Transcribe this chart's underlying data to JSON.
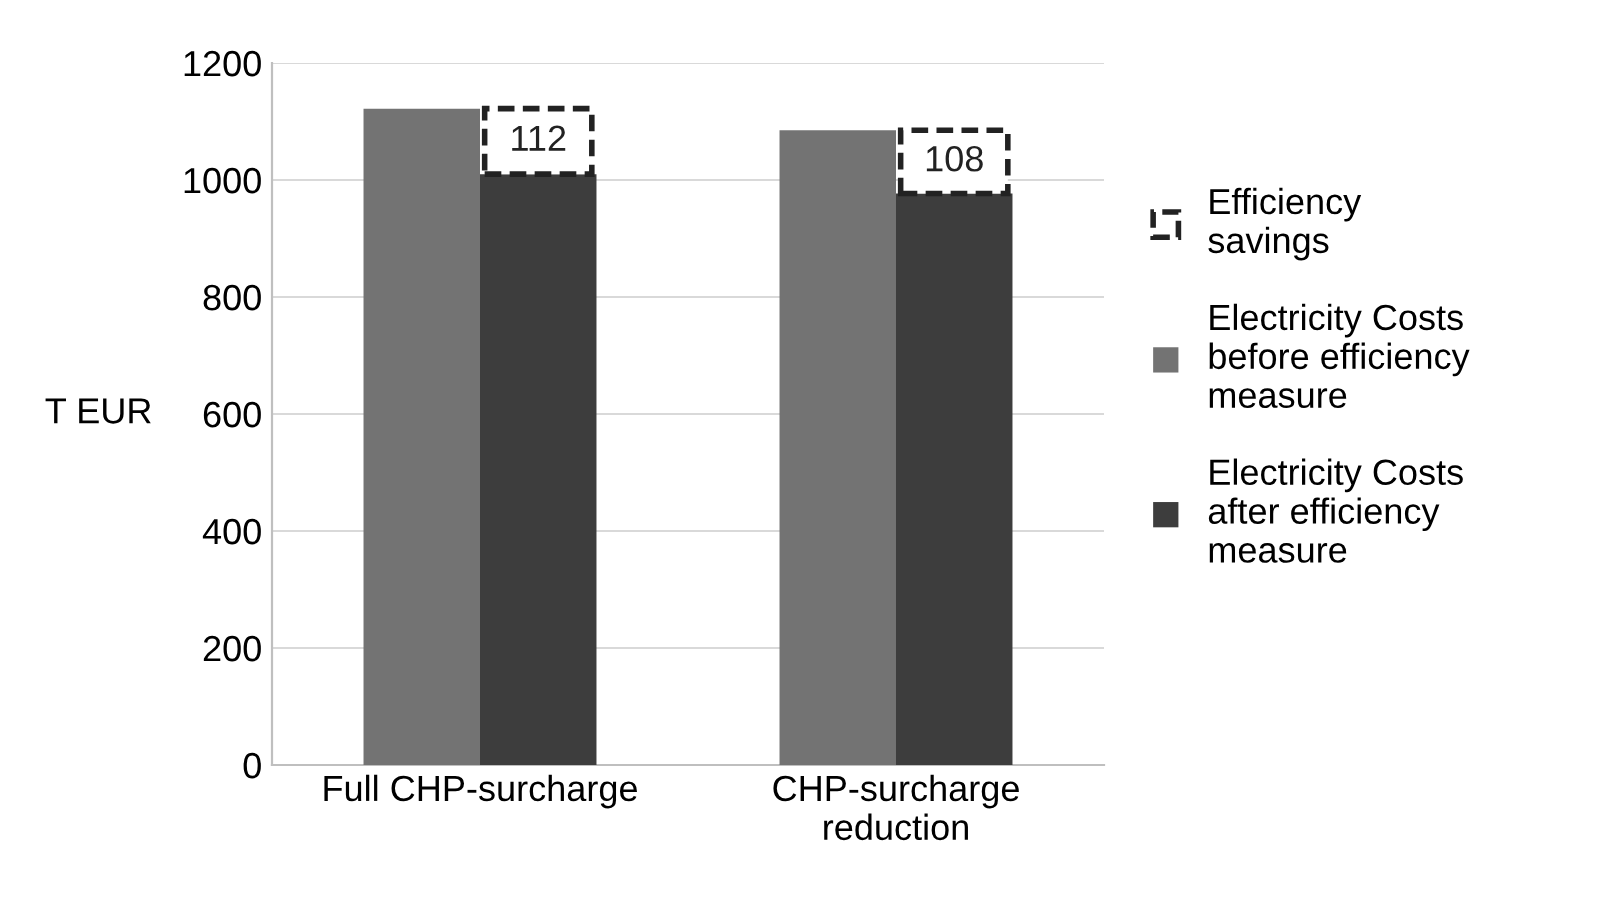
{
  "chart_data": {
    "type": "bar",
    "ylabel": "T EUR",
    "categories": [
      "Full CHP-surcharge",
      "CHP-surcharge\nreduction"
    ],
    "series": [
      {
        "name": "Electricity Costs\nbefore efficiency\nmeasure",
        "color": "#737373",
        "values": [
          1122,
          1085
        ]
      },
      {
        "name": "Electricity Costs\nafter efficiency\nmeasure",
        "color": "#3d3d3d",
        "values": [
          1010,
          977
        ]
      },
      {
        "name": "Efficiency\nsavings",
        "color": "#ffffff",
        "values": [
          112,
          108
        ],
        "base": [
          1010,
          977
        ],
        "line_style": "dashed",
        "data_labels": true
      }
    ],
    "ylim": [
      0,
      1200
    ],
    "yticks": [
      0,
      200,
      400,
      600,
      800,
      1000,
      1200
    ],
    "grid": "y",
    "legend": "right"
  }
}
